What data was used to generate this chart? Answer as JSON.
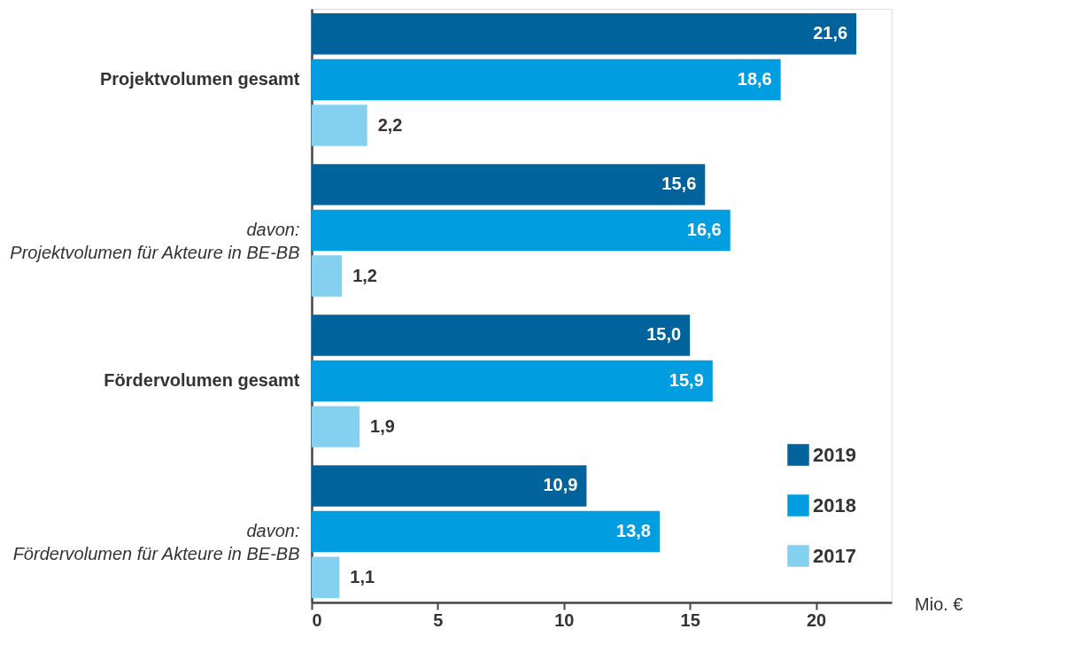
{
  "chart_data": {
    "type": "bar",
    "orientation": "horizontal",
    "categories": [
      "Projektvolumen gesamt",
      "davon:\nProjektvolumen für Akteure in BE-BB",
      "Fördervolumen gesamt",
      "davon:\nFördervolumen für Akteure in BE-BB"
    ],
    "series": [
      {
        "name": "2019",
        "color": "#00639c",
        "values": [
          21.6,
          15.6,
          15.0,
          10.9
        ],
        "value_labels": [
          "21,6",
          "15,6",
          "15,0",
          "10,9"
        ]
      },
      {
        "name": "2018",
        "color": "#009ee0",
        "values": [
          18.6,
          16.6,
          15.9,
          13.8
        ],
        "value_labels": [
          "18,6",
          "16,6",
          "15,9",
          "13,8"
        ]
      },
      {
        "name": "2017",
        "color": "#83d0f0",
        "values": [
          2.2,
          1.2,
          1.9,
          1.1
        ],
        "value_labels": [
          "2,2",
          "1,2",
          "1,9",
          "1,1"
        ]
      }
    ],
    "xlabel": "Mio. €",
    "xlim": [
      0,
      23
    ],
    "xticks": [
      0,
      5,
      10,
      15,
      20
    ],
    "grid": false,
    "legend": "bottom right"
  }
}
